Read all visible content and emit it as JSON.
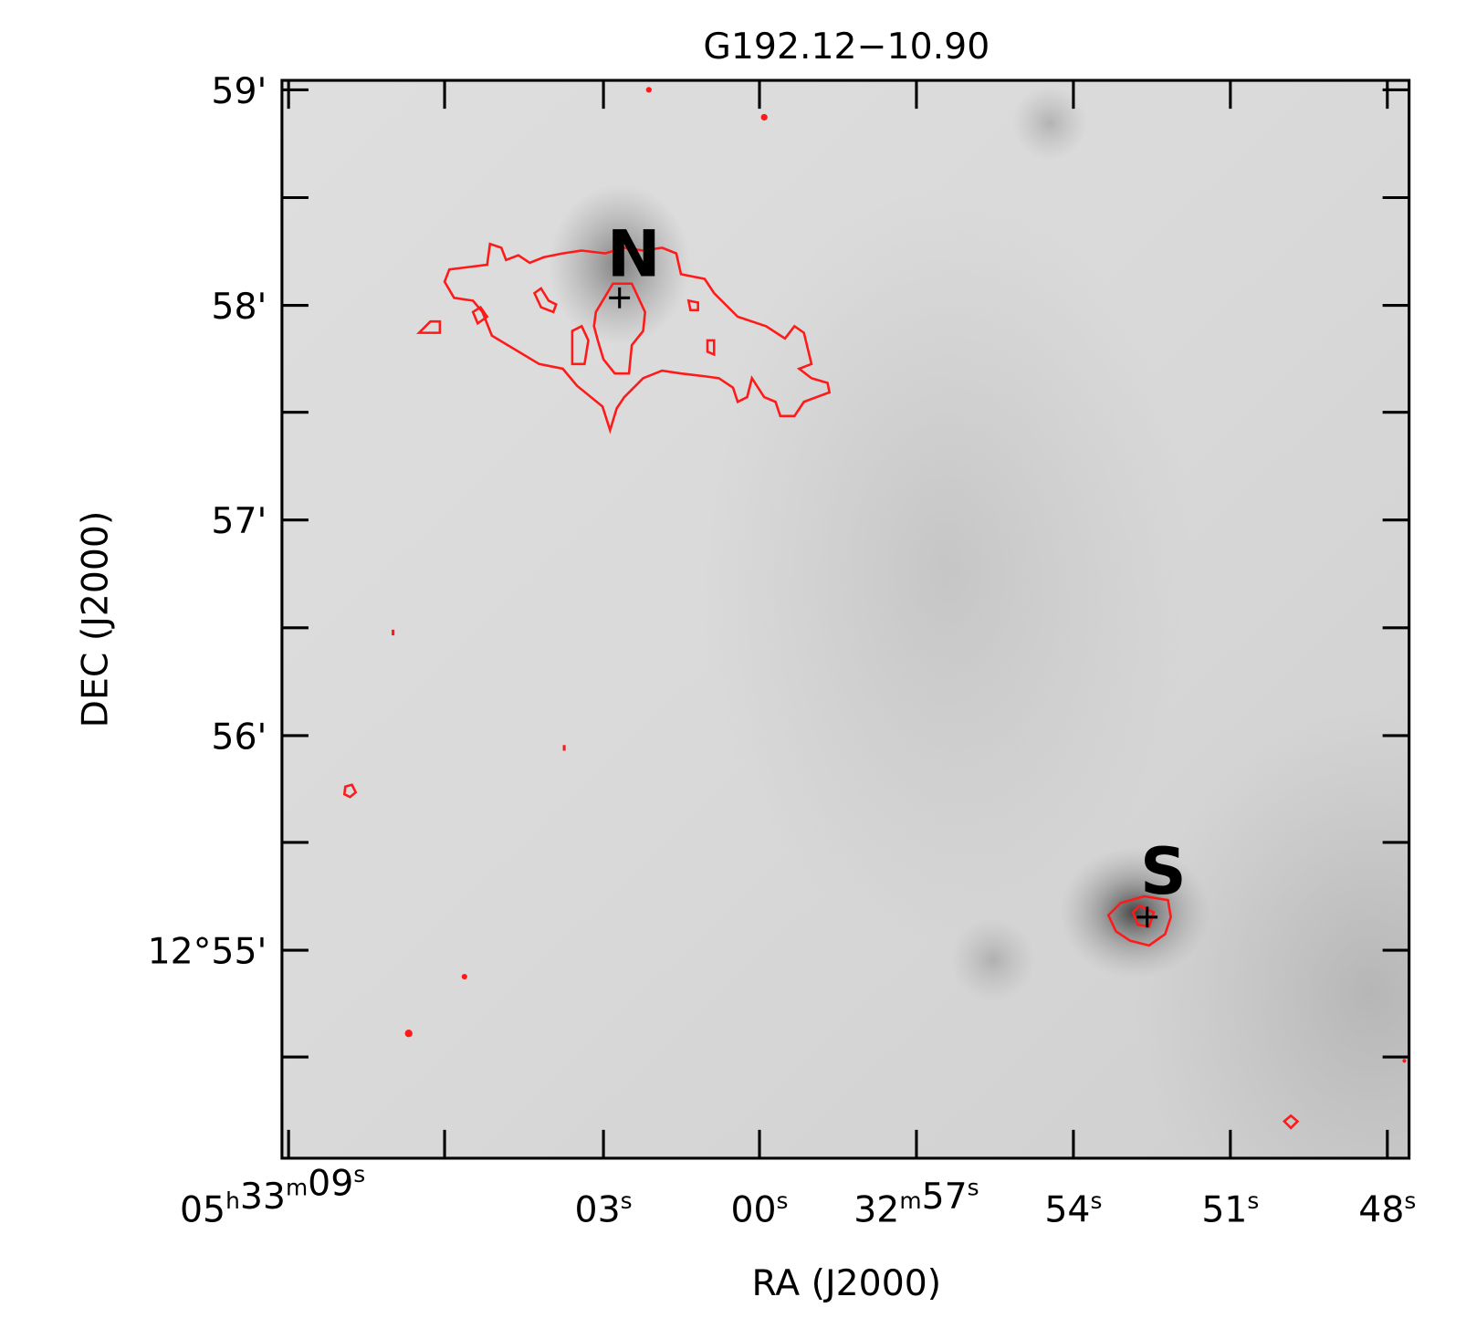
{
  "figure": {
    "title": "G192.12−10.90",
    "x_axis": {
      "label": "RA (J2000)",
      "ticks": [
        [
          [
            "05",
            "h"
          ],
          [
            "33",
            "m"
          ],
          [
            "09",
            "s"
          ]
        ],
        [
          [
            "03",
            "s"
          ]
        ],
        [
          [
            "00",
            "s"
          ]
        ],
        [
          [
            "32",
            "m"
          ],
          [
            "57",
            "s"
          ]
        ],
        [
          [
            "54",
            "s"
          ]
        ],
        [
          [
            "51",
            "s"
          ]
        ],
        [
          [
            "48",
            "s"
          ]
        ]
      ]
    },
    "y_axis": {
      "label": "DEC (J2000)",
      "ticks": [
        "59'",
        "58'",
        "57'",
        "56'",
        "12°55'"
      ]
    },
    "markers": [
      {
        "label": "N"
      },
      {
        "label": "S"
      }
    ]
  }
}
